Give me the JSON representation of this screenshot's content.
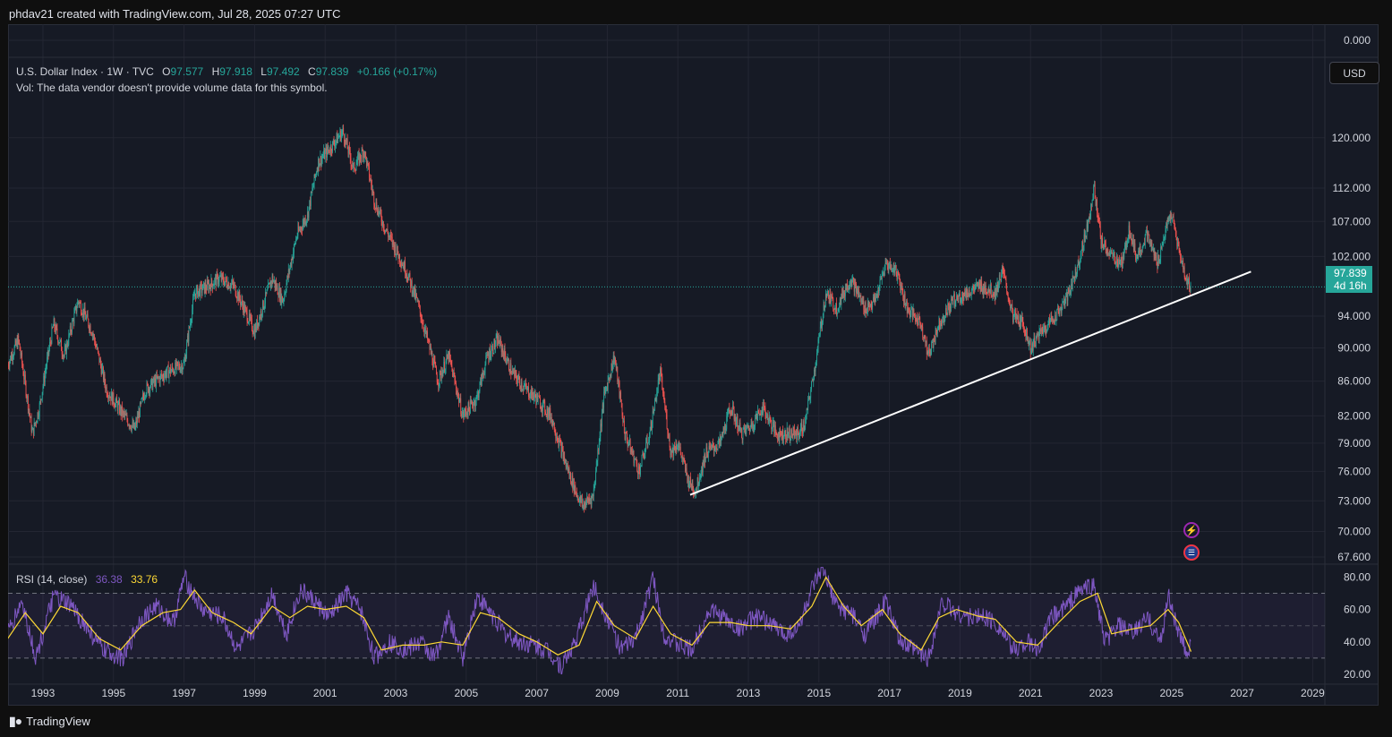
{
  "header": {
    "credit": "phdav21 created with TradingView.com, Jul 28, 2025 07:27 UTC"
  },
  "legend": {
    "title": "U.S. Dollar Index · 1W · TVC",
    "o_key": "O",
    "o_val": "97.577",
    "h_key": "H",
    "h_val": "97.918",
    "l_key": "L",
    "l_val": "97.492",
    "c_key": "C",
    "c_val": "97.839",
    "change": "+0.166 (+0.17%)",
    "vol_note": "Vol: The data vendor doesn't provide volume data for this symbol."
  },
  "rsi_legend": {
    "title": "RSI (14, close)",
    "rsi_val": "36.38",
    "ma_val": "33.76"
  },
  "currency_button": "USD",
  "price_tag": {
    "price": "97.839",
    "countdown": "4d 16h"
  },
  "footer": {
    "brand": "TradingView"
  },
  "colors": {
    "up": "#26a69a",
    "down": "#ef5350",
    "rsi": "#7e57c2",
    "rsi_ma": "#fdd835",
    "trendline": "#ffffff",
    "background": "#161a25",
    "grid": "#232632"
  },
  "chart_data": [
    {
      "type": "candlestick",
      "title": "U.S. Dollar Index · 1W · TVC",
      "x_ticks": [
        "1993",
        "1995",
        "1997",
        "1999",
        "2001",
        "2003",
        "2005",
        "2007",
        "2009",
        "2011",
        "2013",
        "2015",
        "2017",
        "2019",
        "2021",
        "2023",
        "2025",
        "2027",
        "2029"
      ],
      "y_ticks": [
        "0.000",
        "120.000",
        "112.000",
        "107.000",
        "102.000",
        "94.000",
        "90.000",
        "86.000",
        "82.000",
        "79.000",
        "76.000",
        "73.000",
        "70.000",
        "67.600"
      ],
      "y_scale": "log",
      "y_range": [
        67.6,
        124
      ],
      "last_price": 97.839,
      "series": [
        {
          "points": [
            [
              1992.0,
              88
            ],
            [
              1992.3,
              91
            ],
            [
              1992.7,
              80
            ],
            [
              1992.9,
              83
            ],
            [
              1993.3,
              93
            ],
            [
              1993.6,
              89
            ],
            [
              1994.0,
              96
            ],
            [
              1994.4,
              92
            ],
            [
              1994.8,
              85
            ],
            [
              1995.3,
              82
            ],
            [
              1995.6,
              80.5
            ],
            [
              1995.9,
              85
            ],
            [
              1996.5,
              87
            ],
            [
              1997.0,
              88
            ],
            [
              1997.3,
              97
            ],
            [
              1997.7,
              98
            ],
            [
              1998.0,
              99
            ],
            [
              1998.4,
              98
            ],
            [
              1998.7,
              95
            ],
            [
              1999.0,
              92
            ],
            [
              1999.5,
              99
            ],
            [
              1999.8,
              96
            ],
            [
              2000.2,
              105
            ],
            [
              2000.5,
              108
            ],
            [
              2000.8,
              116
            ],
            [
              2001.1,
              118
            ],
            [
              2001.5,
              121
            ],
            [
              2001.8,
              115
            ],
            [
              2002.1,
              118
            ],
            [
              2002.4,
              110
            ],
            [
              2002.7,
              106
            ],
            [
              2002.9,
              104
            ],
            [
              2003.3,
              100
            ],
            [
              2003.6,
              96
            ],
            [
              2003.9,
              91
            ],
            [
              2004.2,
              86
            ],
            [
              2004.5,
              89
            ],
            [
              2004.9,
              82
            ],
            [
              2005.3,
              84
            ],
            [
              2005.6,
              89
            ],
            [
              2005.9,
              91
            ],
            [
              2006.3,
              87
            ],
            [
              2006.7,
              85
            ],
            [
              2007.0,
              84
            ],
            [
              2007.4,
              82
            ],
            [
              2007.8,
              77
            ],
            [
              2008.1,
              74
            ],
            [
              2008.3,
              72.5
            ],
            [
              2008.6,
              73.5
            ],
            [
              2008.9,
              84
            ],
            [
              2009.2,
              89
            ],
            [
              2009.5,
              80
            ],
            [
              2009.9,
              76
            ],
            [
              2010.2,
              80
            ],
            [
              2010.5,
              87
            ],
            [
              2010.8,
              78
            ],
            [
              2011.0,
              79
            ],
            [
              2011.3,
              75
            ],
            [
              2011.5,
              74
            ],
            [
              2011.8,
              78
            ],
            [
              2012.2,
              79
            ],
            [
              2012.5,
              83
            ],
            [
              2012.8,
              80
            ],
            [
              2013.1,
              81
            ],
            [
              2013.4,
              83
            ],
            [
              2013.8,
              80
            ],
            [
              2014.1,
              80
            ],
            [
              2014.4,
              80
            ],
            [
              2014.6,
              81
            ],
            [
              2014.9,
              88
            ],
            [
              2015.2,
              97
            ],
            [
              2015.5,
              95
            ],
            [
              2015.9,
              99
            ],
            [
              2016.3,
              95
            ],
            [
              2016.6,
              96
            ],
            [
              2016.9,
              101
            ],
            [
              2017.2,
              100
            ],
            [
              2017.5,
              95
            ],
            [
              2017.9,
              93
            ],
            [
              2018.1,
              89
            ],
            [
              2018.4,
              93
            ],
            [
              2018.8,
              96
            ],
            [
              2019.2,
              97
            ],
            [
              2019.6,
              98
            ],
            [
              2020.0,
              97
            ],
            [
              2020.2,
              100
            ],
            [
              2020.5,
              94
            ],
            [
              2020.8,
              93
            ],
            [
              2021.0,
              90
            ],
            [
              2021.3,
              92
            ],
            [
              2021.7,
              94
            ],
            [
              2022.0,
              96
            ],
            [
              2022.3,
              100
            ],
            [
              2022.6,
              106
            ],
            [
              2022.8,
              112
            ],
            [
              2023.0,
              104
            ],
            [
              2023.3,
              102
            ],
            [
              2023.6,
              101
            ],
            [
              2023.8,
              106
            ],
            [
              2024.0,
              102
            ],
            [
              2024.3,
              105
            ],
            [
              2024.6,
              101
            ],
            [
              2024.9,
              107
            ],
            [
              2025.0,
              108
            ],
            [
              2025.2,
              103
            ],
            [
              2025.4,
              99
            ],
            [
              2025.55,
              97.8
            ]
          ]
        }
      ],
      "trendline": {
        "from": [
          2011.35,
          73.6
        ],
        "to": [
          2027.25,
          99.9
        ]
      }
    },
    {
      "type": "line",
      "title": "RSI (14, close)",
      "y_ticks": [
        "80.00",
        "60.00",
        "40.00",
        "20.00"
      ],
      "y_range": [
        15,
        88
      ],
      "bands": [
        30,
        50,
        70
      ],
      "series": [
        {
          "name": "RSI",
          "points": [
            [
              1992.0,
              45
            ],
            [
              1992.4,
              65
            ],
            [
              1992.8,
              30
            ],
            [
              1993.3,
              68
            ],
            [
              1993.8,
              62
            ],
            [
              1994.2,
              50
            ],
            [
              1994.7,
              35
            ],
            [
              1995.3,
              30
            ],
            [
              1995.7,
              52
            ],
            [
              1996.2,
              62
            ],
            [
              1996.7,
              52
            ],
            [
              1997.0,
              80
            ],
            [
              1997.5,
              60
            ],
            [
              1998.1,
              55
            ],
            [
              1998.5,
              35
            ],
            [
              1999.0,
              48
            ],
            [
              1999.5,
              70
            ],
            [
              1999.9,
              45
            ],
            [
              2000.3,
              72
            ],
            [
              2000.7,
              65
            ],
            [
              2001.1,
              55
            ],
            [
              2001.6,
              70
            ],
            [
              2002.0,
              60
            ],
            [
              2002.4,
              30
            ],
            [
              2002.8,
              40
            ],
            [
              2003.3,
              35
            ],
            [
              2003.7,
              40
            ],
            [
              2004.1,
              30
            ],
            [
              2004.5,
              55
            ],
            [
              2004.9,
              30
            ],
            [
              2005.3,
              68
            ],
            [
              2005.7,
              58
            ],
            [
              2006.1,
              45
            ],
            [
              2006.5,
              40
            ],
            [
              2006.9,
              38
            ],
            [
              2007.3,
              35
            ],
            [
              2007.7,
              25
            ],
            [
              2008.1,
              40
            ],
            [
              2008.6,
              75
            ],
            [
              2009.0,
              55
            ],
            [
              2009.4,
              35
            ],
            [
              2009.8,
              42
            ],
            [
              2010.3,
              80
            ],
            [
              2010.6,
              45
            ],
            [
              2011.0,
              38
            ],
            [
              2011.4,
              35
            ],
            [
              2011.9,
              60
            ],
            [
              2012.3,
              55
            ],
            [
              2012.7,
              48
            ],
            [
              2013.2,
              55
            ],
            [
              2013.6,
              52
            ],
            [
              2014.0,
              45
            ],
            [
              2014.4,
              48
            ],
            [
              2014.8,
              72
            ],
            [
              2015.1,
              85
            ],
            [
              2015.5,
              62
            ],
            [
              2015.9,
              58
            ],
            [
              2016.3,
              45
            ],
            [
              2016.7,
              58
            ],
            [
              2016.9,
              65
            ],
            [
              2017.3,
              40
            ],
            [
              2017.7,
              35
            ],
            [
              2018.1,
              30
            ],
            [
              2018.5,
              65
            ],
            [
              2018.9,
              58
            ],
            [
              2019.3,
              55
            ],
            [
              2019.7,
              56
            ],
            [
              2020.1,
              50
            ],
            [
              2020.5,
              35
            ],
            [
              2020.9,
              40
            ],
            [
              2021.2,
              35
            ],
            [
              2021.6,
              55
            ],
            [
              2022.0,
              62
            ],
            [
              2022.4,
              72
            ],
            [
              2022.8,
              75
            ],
            [
              2023.1,
              40
            ],
            [
              2023.5,
              50
            ],
            [
              2023.9,
              45
            ],
            [
              2024.3,
              55
            ],
            [
              2024.7,
              40
            ],
            [
              2024.9,
              70
            ],
            [
              2025.2,
              45
            ],
            [
              2025.4,
              35
            ],
            [
              2025.55,
              36
            ]
          ]
        },
        {
          "name": "RSI MA",
          "points": [
            [
              1992.0,
              42
            ],
            [
              1992.5,
              58
            ],
            [
              1993.0,
              45
            ],
            [
              1993.5,
              62
            ],
            [
              1994.0,
              58
            ],
            [
              1994.6,
              42
            ],
            [
              1995.2,
              35
            ],
            [
              1995.8,
              50
            ],
            [
              1996.4,
              58
            ],
            [
              1996.9,
              60
            ],
            [
              1997.3,
              72
            ],
            [
              1997.8,
              58
            ],
            [
              1998.4,
              52
            ],
            [
              1998.9,
              45
            ],
            [
              1999.5,
              62
            ],
            [
              2000.0,
              55
            ],
            [
              2000.5,
              62
            ],
            [
              2001.0,
              60
            ],
            [
              2001.6,
              62
            ],
            [
              2002.1,
              55
            ],
            [
              2002.6,
              35
            ],
            [
              2003.2,
              38
            ],
            [
              2003.8,
              38
            ],
            [
              2004.3,
              40
            ],
            [
              2004.9,
              38
            ],
            [
              2005.4,
              58
            ],
            [
              2005.9,
              55
            ],
            [
              2006.5,
              45
            ],
            [
              2007.0,
              40
            ],
            [
              2007.6,
              32
            ],
            [
              2008.2,
              38
            ],
            [
              2008.7,
              65
            ],
            [
              2009.2,
              50
            ],
            [
              2009.8,
              42
            ],
            [
              2010.3,
              62
            ],
            [
              2010.8,
              45
            ],
            [
              2011.4,
              38
            ],
            [
              2011.9,
              52
            ],
            [
              2012.5,
              52
            ],
            [
              2013.0,
              50
            ],
            [
              2013.6,
              50
            ],
            [
              2014.2,
              48
            ],
            [
              2014.8,
              62
            ],
            [
              2015.2,
              80
            ],
            [
              2015.7,
              62
            ],
            [
              2016.2,
              50
            ],
            [
              2016.8,
              60
            ],
            [
              2017.3,
              45
            ],
            [
              2017.9,
              35
            ],
            [
              2018.4,
              55
            ],
            [
              2018.9,
              60
            ],
            [
              2019.5,
              56
            ],
            [
              2020.0,
              54
            ],
            [
              2020.6,
              40
            ],
            [
              2021.2,
              38
            ],
            [
              2021.8,
              52
            ],
            [
              2022.4,
              65
            ],
            [
              2022.9,
              70
            ],
            [
              2023.3,
              45
            ],
            [
              2023.9,
              48
            ],
            [
              2024.4,
              50
            ],
            [
              2024.9,
              60
            ],
            [
              2025.2,
              52
            ],
            [
              2025.55,
              34
            ]
          ]
        }
      ]
    }
  ]
}
